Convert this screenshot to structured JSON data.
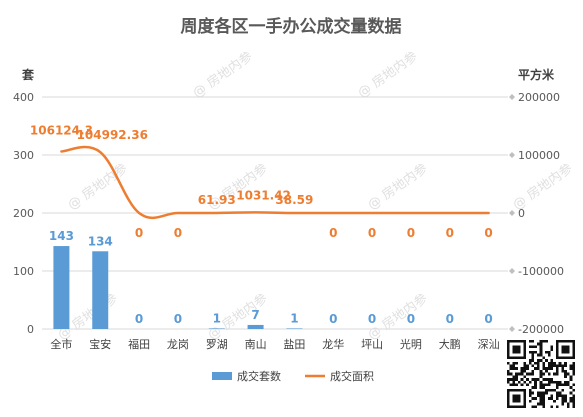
{
  "chart_data": {
    "type": "bar",
    "title": "周度各区一手办公成交量数据",
    "categories": [
      "全市",
      "宝安",
      "福田",
      "龙岗",
      "罗湖",
      "南山",
      "盐田",
      "龙华",
      "坪山",
      "光明",
      "大鹏",
      "深汕"
    ],
    "series": [
      {
        "name": "成交套数",
        "type": "bar",
        "axis": "left",
        "color": "#5b9bd5",
        "values": [
          143,
          134,
          0,
          0,
          1,
          7,
          1,
          0,
          0,
          0,
          0,
          0
        ],
        "labels": [
          "143",
          "134",
          "0",
          "0",
          "1",
          "7",
          "1",
          "0",
          "0",
          "0",
          "0",
          "0"
        ]
      },
      {
        "name": "成交面积",
        "type": "line",
        "axis": "right",
        "color": "#ed7d31",
        "values": [
          106124.3,
          104992.36,
          0,
          0,
          61.93,
          1031.42,
          38.59,
          0,
          0,
          0,
          0,
          0
        ],
        "labels": [
          "106124.3",
          "104992.36",
          "0",
          "0",
          "61.93",
          "1031.42",
          "38.59",
          "0",
          "0",
          "0",
          "0",
          "0"
        ]
      }
    ],
    "ylabel_left": "套",
    "ylabel_right": "平方米",
    "ylim_left": [
      0,
      400
    ],
    "yticks_left": [
      "0",
      "100",
      "200",
      "300",
      "400"
    ],
    "ylim_right": [
      -200000,
      200000
    ],
    "yticks_right": [
      "-200000",
      "-100000",
      "0",
      "100000",
      "200000"
    ],
    "grid": true,
    "legend": "bottom"
  },
  "watermark": "房地内参",
  "qr_code": "qr-code"
}
